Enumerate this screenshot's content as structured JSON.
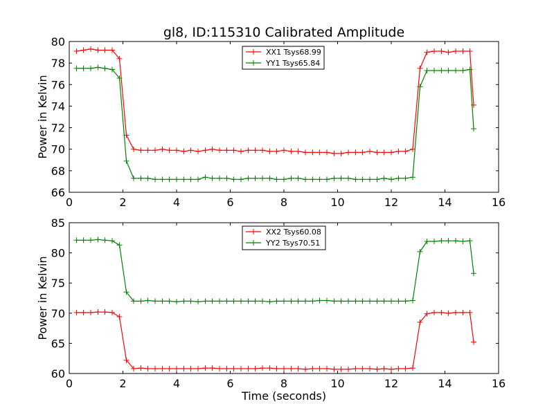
{
  "title": "gl8, ID:115310 Calibrated Amplitude",
  "chart_data": [
    {
      "type": "line",
      "title": "gl8, ID:115310 Calibrated Amplitude",
      "xlabel": "",
      "ylabel": "Power in Kelvin",
      "xlim": [
        0,
        16
      ],
      "ylim": [
        66,
        80
      ],
      "xticks": [
        0,
        2,
        4,
        6,
        8,
        10,
        12,
        14,
        16
      ],
      "yticks": [
        66,
        68,
        70,
        72,
        74,
        76,
        78,
        80
      ],
      "grid": false,
      "legend_position": "top-center",
      "x": [
        0.27,
        0.53,
        0.8,
        1.07,
        1.33,
        1.6,
        1.87,
        2.13,
        2.4,
        2.67,
        2.93,
        3.2,
        3.47,
        3.73,
        4.0,
        4.27,
        4.53,
        4.8,
        5.07,
        5.33,
        5.6,
        5.87,
        6.13,
        6.4,
        6.67,
        6.93,
        7.2,
        7.47,
        7.73,
        8.0,
        8.27,
        8.53,
        8.8,
        9.07,
        9.33,
        9.6,
        9.87,
        10.13,
        10.4,
        10.67,
        10.93,
        11.2,
        11.47,
        11.73,
        12.0,
        12.27,
        12.53,
        12.8,
        13.07,
        13.33,
        13.6,
        13.87,
        14.13,
        14.4,
        14.67,
        14.93,
        15.07
      ],
      "series": [
        {
          "name": "XX1 Tsys68.99",
          "color": "#ff0000",
          "values": [
            79.1,
            79.2,
            79.3,
            79.2,
            79.2,
            79.2,
            78.4,
            71.3,
            70.0,
            69.9,
            69.9,
            69.9,
            70.0,
            69.9,
            69.9,
            69.8,
            69.9,
            69.8,
            69.9,
            70.0,
            69.9,
            69.9,
            69.9,
            69.8,
            69.9,
            69.9,
            69.9,
            69.8,
            69.8,
            69.9,
            69.8,
            69.8,
            69.7,
            69.7,
            69.7,
            69.7,
            69.6,
            69.6,
            69.7,
            69.7,
            69.7,
            69.8,
            69.7,
            69.7,
            69.7,
            69.8,
            69.8,
            70.0,
            77.5,
            79.0,
            79.1,
            79.1,
            79.0,
            79.1,
            79.1,
            79.1,
            74.1
          ]
        },
        {
          "name": "YY1 Tsys65.84",
          "color": "#008000",
          "values": [
            77.5,
            77.5,
            77.5,
            77.6,
            77.5,
            77.4,
            76.6,
            68.9,
            67.3,
            67.3,
            67.3,
            67.2,
            67.2,
            67.2,
            67.2,
            67.2,
            67.2,
            67.2,
            67.4,
            67.3,
            67.3,
            67.3,
            67.2,
            67.2,
            67.3,
            67.3,
            67.3,
            67.3,
            67.2,
            67.2,
            67.3,
            67.3,
            67.2,
            67.2,
            67.2,
            67.2,
            67.3,
            67.3,
            67.3,
            67.2,
            67.2,
            67.2,
            67.2,
            67.3,
            67.2,
            67.3,
            67.3,
            67.4,
            75.8,
            77.3,
            77.3,
            77.3,
            77.3,
            77.3,
            77.3,
            77.4,
            71.9
          ]
        }
      ]
    },
    {
      "type": "line",
      "title": "",
      "xlabel": "Time (seconds)",
      "ylabel": "Power in Kelvin",
      "xlim": [
        0,
        16
      ],
      "ylim": [
        60,
        85
      ],
      "xticks": [
        0,
        2,
        4,
        6,
        8,
        10,
        12,
        14,
        16
      ],
      "yticks": [
        60,
        65,
        70,
        75,
        80,
        85
      ],
      "grid": false,
      "legend_position": "top-center",
      "x": [
        0.27,
        0.53,
        0.8,
        1.07,
        1.33,
        1.6,
        1.87,
        2.13,
        2.4,
        2.67,
        2.93,
        3.2,
        3.47,
        3.73,
        4.0,
        4.27,
        4.53,
        4.8,
        5.07,
        5.33,
        5.6,
        5.87,
        6.13,
        6.4,
        6.67,
        6.93,
        7.2,
        7.47,
        7.73,
        8.0,
        8.27,
        8.53,
        8.8,
        9.07,
        9.33,
        9.6,
        9.87,
        10.13,
        10.4,
        10.67,
        10.93,
        11.2,
        11.47,
        11.73,
        12.0,
        12.27,
        12.53,
        12.8,
        13.07,
        13.33,
        13.6,
        13.87,
        14.13,
        14.4,
        14.67,
        14.93,
        15.07
      ],
      "series": [
        {
          "name": "XX2 Tsys60.08",
          "color": "#ff0000",
          "values": [
            70.1,
            70.1,
            70.1,
            70.2,
            70.2,
            70.1,
            69.4,
            62.2,
            60.8,
            60.9,
            60.8,
            60.8,
            60.8,
            60.8,
            60.8,
            60.8,
            60.8,
            60.8,
            60.9,
            60.9,
            60.8,
            60.8,
            60.8,
            60.8,
            60.8,
            60.8,
            60.9,
            60.9,
            60.8,
            60.8,
            60.8,
            60.8,
            60.7,
            60.8,
            60.8,
            60.8,
            60.7,
            60.7,
            60.7,
            60.8,
            60.8,
            60.8,
            60.7,
            60.8,
            60.7,
            60.8,
            60.8,
            60.9,
            68.5,
            69.9,
            70.1,
            70.1,
            70.0,
            70.1,
            70.1,
            70.1,
            65.2
          ]
        },
        {
          "name": "YY2 Tsys70.51",
          "color": "#008000",
          "values": [
            82.1,
            82.1,
            82.1,
            82.2,
            82.1,
            82.0,
            81.3,
            73.5,
            72.0,
            72.0,
            72.1,
            72.0,
            72.0,
            72.0,
            71.9,
            72.0,
            72.0,
            71.9,
            72.0,
            72.0,
            72.0,
            72.0,
            72.0,
            72.0,
            72.0,
            72.0,
            72.0,
            71.9,
            72.0,
            72.0,
            72.0,
            72.0,
            72.0,
            72.0,
            72.1,
            72.1,
            72.0,
            72.0,
            72.0,
            72.0,
            72.0,
            72.0,
            72.0,
            72.0,
            72.0,
            72.0,
            72.0,
            72.1,
            80.2,
            81.9,
            81.9,
            82.0,
            82.0,
            82.0,
            81.9,
            82.0,
            76.6
          ]
        }
      ]
    }
  ]
}
